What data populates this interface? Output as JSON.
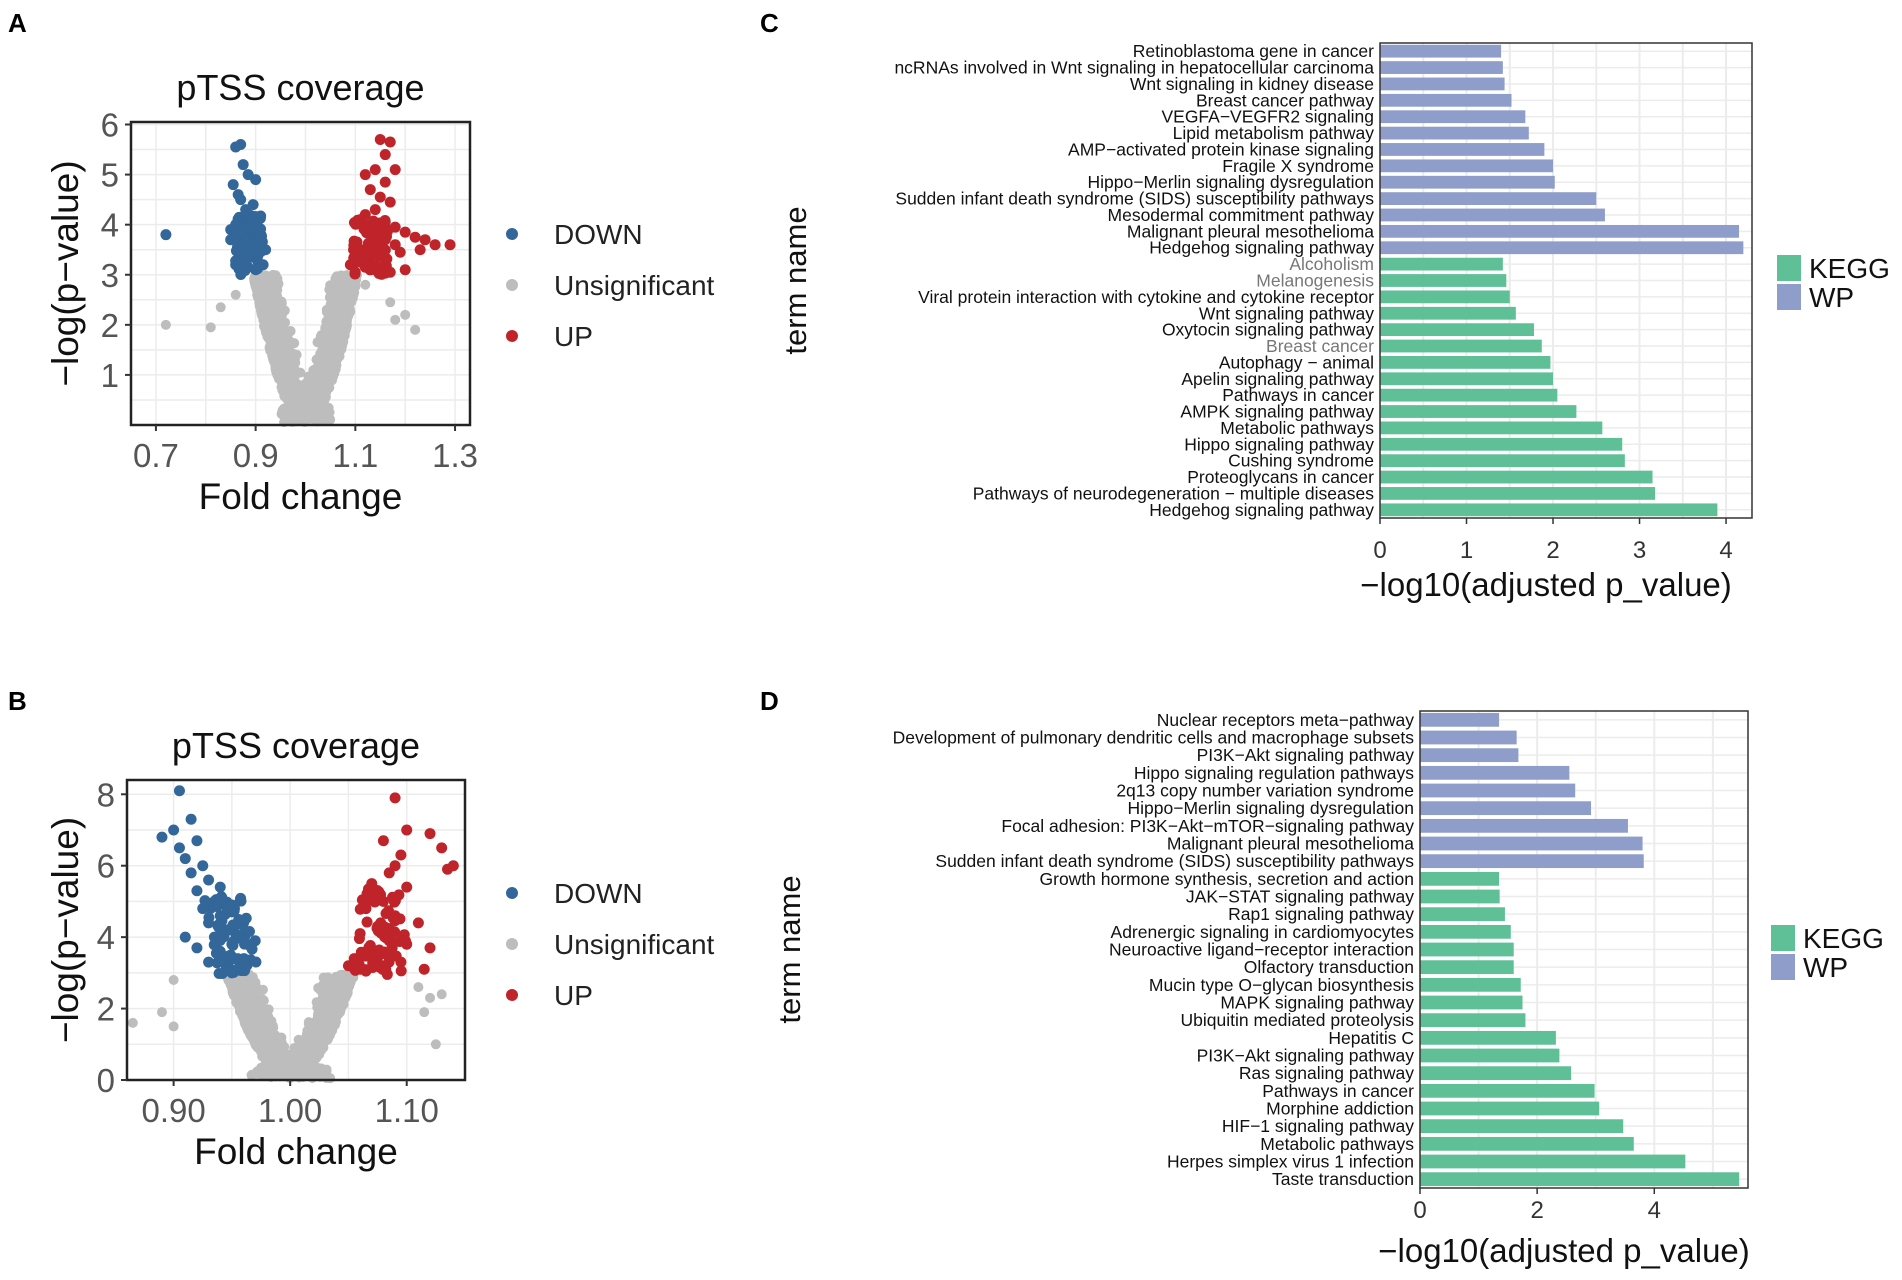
{
  "colors": {
    "down": "#336699",
    "unsig": "#bdbdbd",
    "up": "#c0242b",
    "kegg": "#5fbf96",
    "wp": "#8e9dc9",
    "grid": "#ececec",
    "frame": "#222222"
  },
  "chart_data": [
    {
      "panel": "A",
      "type": "scatter",
      "title": "pTSS coverage",
      "xlabel": "Fold change",
      "ylabel": "−log(p−value)",
      "xlim": [
        0.65,
        1.33
      ],
      "ylim": [
        0,
        6.05
      ],
      "xticks": [
        0.7,
        0.9,
        1.1,
        1.3
      ],
      "xtick_labels": [
        "0.7",
        "0.9",
        "1.1",
        "1.3"
      ],
      "yticks": [
        1,
        2,
        3,
        4,
        5,
        6
      ],
      "ytick_labels": [
        "1",
        "2",
        "3",
        "4",
        "5",
        "6"
      ],
      "legend": [
        {
          "key": "down",
          "label": "DOWN"
        },
        {
          "key": "unsig",
          "label": "Unsignificant"
        },
        {
          "key": "up",
          "label": "UP"
        }
      ],
      "down_points": [
        [
          0.72,
          3.8
        ],
        [
          0.87,
          5.6
        ],
        [
          0.86,
          5.55
        ],
        [
          0.875,
          5.2
        ],
        [
          0.885,
          5.0
        ],
        [
          0.9,
          4.9
        ],
        [
          0.855,
          4.8
        ],
        [
          0.865,
          4.6
        ],
        [
          0.87,
          4.5
        ],
        [
          0.88,
          4.3
        ],
        [
          0.895,
          4.4
        ],
        [
          0.905,
          4.1
        ],
        [
          0.86,
          4.0
        ],
        [
          0.875,
          3.9
        ],
        [
          0.89,
          3.8
        ],
        [
          0.91,
          3.6
        ],
        [
          0.92,
          3.5
        ],
        [
          0.85,
          3.7
        ],
        [
          0.865,
          3.55
        ],
        [
          0.88,
          3.45
        ],
        [
          0.895,
          3.35
        ],
        [
          0.905,
          3.25
        ],
        [
          0.915,
          3.2
        ],
        [
          0.87,
          3.3
        ],
        [
          0.885,
          3.15
        ],
        [
          0.9,
          3.1
        ],
        [
          0.86,
          3.2
        ],
        [
          0.85,
          3.9
        ],
        [
          0.875,
          4.15
        ],
        [
          0.89,
          3.95
        ]
      ],
      "up_points": [
        [
          1.15,
          5.7
        ],
        [
          1.17,
          5.65
        ],
        [
          1.16,
          5.4
        ],
        [
          1.18,
          5.1
        ],
        [
          1.14,
          5.1
        ],
        [
          1.12,
          5.0
        ],
        [
          1.16,
          4.85
        ],
        [
          1.13,
          4.7
        ],
        [
          1.15,
          4.55
        ],
        [
          1.17,
          4.45
        ],
        [
          1.14,
          4.3
        ],
        [
          1.12,
          4.2
        ],
        [
          1.11,
          4.1
        ],
        [
          1.16,
          4.05
        ],
        [
          1.18,
          3.95
        ],
        [
          1.2,
          3.85
        ],
        [
          1.22,
          3.75
        ],
        [
          1.24,
          3.7
        ],
        [
          1.26,
          3.6
        ],
        [
          1.29,
          3.6
        ],
        [
          1.23,
          3.5
        ],
        [
          1.19,
          3.45
        ],
        [
          1.15,
          3.4
        ],
        [
          1.13,
          3.35
        ],
        [
          1.11,
          3.3
        ],
        [
          1.1,
          3.25
        ],
        [
          1.09,
          3.2
        ],
        [
          1.12,
          3.15
        ],
        [
          1.14,
          3.1
        ],
        [
          1.17,
          3.05
        ],
        [
          1.2,
          3.1
        ],
        [
          1.18,
          3.6
        ],
        [
          1.16,
          3.7
        ],
        [
          1.1,
          3.5
        ],
        [
          1.13,
          3.9
        ]
      ],
      "unsig_extra": [
        [
          0.72,
          2.0
        ],
        [
          0.83,
          2.35
        ],
        [
          0.81,
          1.95
        ],
        [
          0.86,
          2.6
        ],
        [
          0.92,
          2.65
        ],
        [
          1.12,
          2.8
        ],
        [
          1.17,
          2.45
        ],
        [
          1.2,
          2.2
        ],
        [
          1.22,
          1.9
        ],
        [
          1.18,
          2.1
        ]
      ]
    },
    {
      "panel": "B",
      "type": "scatter",
      "title": "pTSS coverage",
      "xlabel": "Fold change",
      "ylabel": "−log(p−value)",
      "xlim": [
        0.86,
        1.15
      ],
      "ylim": [
        0,
        8.4
      ],
      "xticks": [
        0.9,
        1.0,
        1.1
      ],
      "xtick_labels": [
        "0.90",
        "1.00",
        "1.10"
      ],
      "yticks": [
        0,
        2,
        4,
        6,
        8
      ],
      "ytick_labels": [
        "0",
        "2",
        "4",
        "6",
        "8"
      ],
      "legend": [
        {
          "key": "down",
          "label": "DOWN"
        },
        {
          "key": "unsig",
          "label": "Unsignificant"
        },
        {
          "key": "up",
          "label": "UP"
        }
      ],
      "down_points": [
        [
          0.905,
          8.1
        ],
        [
          0.915,
          7.3
        ],
        [
          0.89,
          6.8
        ],
        [
          0.9,
          7.0
        ],
        [
          0.92,
          6.7
        ],
        [
          0.905,
          6.5
        ],
        [
          0.91,
          6.2
        ],
        [
          0.925,
          6.0
        ],
        [
          0.915,
          5.8
        ],
        [
          0.93,
          5.6
        ],
        [
          0.92,
          5.3
        ],
        [
          0.935,
          5.0
        ],
        [
          0.925,
          4.8
        ],
        [
          0.94,
          4.6
        ],
        [
          0.93,
          4.4
        ],
        [
          0.945,
          4.2
        ],
        [
          0.935,
          4.0
        ],
        [
          0.95,
          3.8
        ],
        [
          0.94,
          3.6
        ],
        [
          0.955,
          3.4
        ],
        [
          0.945,
          3.2
        ],
        [
          0.96,
          3.1
        ],
        [
          0.95,
          3.0
        ],
        [
          0.91,
          4.0
        ],
        [
          0.92,
          3.7
        ],
        [
          0.93,
          3.3
        ],
        [
          0.94,
          5.4
        ],
        [
          0.95,
          4.9
        ],
        [
          0.96,
          4.4
        ],
        [
          0.97,
          3.9
        ]
      ],
      "up_points": [
        [
          1.09,
          7.9
        ],
        [
          1.12,
          6.9
        ],
        [
          1.13,
          6.5
        ],
        [
          1.14,
          6.0
        ],
        [
          1.135,
          5.9
        ],
        [
          1.1,
          7.0
        ],
        [
          1.08,
          6.7
        ],
        [
          1.095,
          6.3
        ],
        [
          1.085,
          5.8
        ],
        [
          1.07,
          5.5
        ],
        [
          1.1,
          5.4
        ],
        [
          1.08,
          5.0
        ],
        [
          1.065,
          4.8
        ],
        [
          1.09,
          4.6
        ],
        [
          1.075,
          4.3
        ],
        [
          1.06,
          4.1
        ],
        [
          1.085,
          3.9
        ],
        [
          1.07,
          3.6
        ],
        [
          1.055,
          3.4
        ],
        [
          1.08,
          3.2
        ],
        [
          1.065,
          3.05
        ],
        [
          1.11,
          4.4
        ],
        [
          1.1,
          3.8
        ],
        [
          1.095,
          3.3
        ],
        [
          1.115,
          3.1
        ],
        [
          1.12,
          3.7
        ],
        [
          1.05,
          3.2
        ],
        [
          1.09,
          6.0
        ]
      ],
      "unsig_extra": [
        [
          0.865,
          1.6
        ],
        [
          0.9,
          2.8
        ],
        [
          0.89,
          1.9
        ],
        [
          0.9,
          1.5
        ],
        [
          1.11,
          2.6
        ],
        [
          1.12,
          2.3
        ],
        [
          1.125,
          1.0
        ],
        [
          1.13,
          2.4
        ],
        [
          1.115,
          1.9
        ]
      ]
    },
    {
      "panel": "C",
      "type": "bar",
      "orientation": "horizontal",
      "ylabel": "term name",
      "xlabel": "−log10(adjusted p_value)",
      "xlim": [
        0,
        4.3
      ],
      "xticks": [
        0,
        1,
        2,
        3,
        4
      ],
      "xtick_labels": [
        "0",
        "1",
        "2",
        "3",
        "4"
      ],
      "legend": [
        {
          "key": "kegg",
          "label": "KEGG"
        },
        {
          "key": "wp",
          "label": "WP"
        }
      ],
      "bars": [
        {
          "label": "Retinoblastoma gene in cancer",
          "value": 1.4,
          "group": "wp"
        },
        {
          "label": "ncRNAs involved in Wnt signaling in hepatocellular carcinoma",
          "value": 1.42,
          "group": "wp"
        },
        {
          "label": "Wnt signaling in kidney disease",
          "value": 1.44,
          "group": "wp"
        },
        {
          "label": "Breast cancer pathway",
          "value": 1.52,
          "group": "wp"
        },
        {
          "label": "VEGFA−VEGFR2 signaling",
          "value": 1.68,
          "group": "wp"
        },
        {
          "label": "Lipid metabolism pathway",
          "value": 1.72,
          "group": "wp"
        },
        {
          "label": "AMP−activated protein kinase signaling",
          "value": 1.9,
          "group": "wp"
        },
        {
          "label": "Fragile X syndrome",
          "value": 2.0,
          "group": "wp"
        },
        {
          "label": "Hippo−Merlin signaling dysregulation",
          "value": 2.02,
          "group": "wp"
        },
        {
          "label": "Sudden infant death syndrome (SIDS) susceptibility pathways",
          "value": 2.5,
          "group": "wp"
        },
        {
          "label": "Mesodermal commitment pathway",
          "value": 2.6,
          "group": "wp"
        },
        {
          "label": "Malignant pleural mesothelioma",
          "value": 4.15,
          "group": "wp"
        },
        {
          "label": "Hedgehog signaling pathway",
          "value": 4.2,
          "group": "wp"
        },
        {
          "label": "Alcoholism",
          "value": 1.42,
          "group": "kegg"
        },
        {
          "label": "Melanogenesis",
          "value": 1.46,
          "group": "kegg"
        },
        {
          "label": "Viral protein interaction with cytokine and cytokine receptor",
          "value": 1.5,
          "group": "kegg"
        },
        {
          "label": "Wnt signaling pathway",
          "value": 1.57,
          "group": "kegg"
        },
        {
          "label": "Oxytocin signaling pathway",
          "value": 1.78,
          "group": "kegg"
        },
        {
          "label": "Breast cancer",
          "value": 1.87,
          "group": "kegg"
        },
        {
          "label": "Autophagy − animal",
          "value": 1.97,
          "group": "kegg"
        },
        {
          "label": "Apelin signaling pathway",
          "value": 2.0,
          "group": "kegg"
        },
        {
          "label": "Pathways in cancer",
          "value": 2.05,
          "group": "kegg"
        },
        {
          "label": "AMPK signaling pathway",
          "value": 2.27,
          "group": "kegg"
        },
        {
          "label": "Metabolic pathways",
          "value": 2.57,
          "group": "kegg"
        },
        {
          "label": "Hippo signaling pathway",
          "value": 2.8,
          "group": "kegg"
        },
        {
          "label": "Cushing syndrome",
          "value": 2.83,
          "group": "kegg"
        },
        {
          "label": "Proteoglycans in cancer",
          "value": 3.15,
          "group": "kegg"
        },
        {
          "label": "Pathways of neurodegeneration − multiple diseases",
          "value": 3.18,
          "group": "kegg"
        },
        {
          "label": "Hedgehog signaling pathway",
          "value": 3.9,
          "group": "kegg"
        }
      ],
      "muted_labels": [
        "Alcoholism",
        "Melanogenesis",
        "Breast cancer"
      ]
    },
    {
      "panel": "D",
      "type": "bar",
      "orientation": "horizontal",
      "ylabel": "term name",
      "xlabel": "−log10(adjusted p_value)",
      "xlim": [
        0,
        5.6
      ],
      "xticks": [
        0,
        2,
        4
      ],
      "xtick_labels": [
        "0",
        "2",
        "4"
      ],
      "legend": [
        {
          "key": "kegg",
          "label": "KEGG"
        },
        {
          "key": "wp",
          "label": "WP"
        }
      ],
      "bars": [
        {
          "label": "Nuclear receptors meta−pathway",
          "value": 1.35,
          "group": "wp"
        },
        {
          "label": "Development of pulmonary dendritic cells and macrophage subsets",
          "value": 1.65,
          "group": "wp"
        },
        {
          "label": "PI3K−Akt signaling pathway",
          "value": 1.68,
          "group": "wp"
        },
        {
          "label": "Hippo signaling regulation pathways",
          "value": 2.55,
          "group": "wp"
        },
        {
          "label": "2q13 copy number variation syndrome",
          "value": 2.65,
          "group": "wp"
        },
        {
          "label": "Hippo−Merlin signaling dysregulation",
          "value": 2.92,
          "group": "wp"
        },
        {
          "label": "Focal adhesion: PI3K−Akt−mTOR−signaling pathway",
          "value": 3.55,
          "group": "wp"
        },
        {
          "label": "Malignant pleural mesothelioma",
          "value": 3.8,
          "group": "wp"
        },
        {
          "label": "Sudden infant death syndrome (SIDS) susceptibility pathways",
          "value": 3.82,
          "group": "wp"
        },
        {
          "label": "Growth hormone synthesis, secretion and action",
          "value": 1.35,
          "group": "kegg"
        },
        {
          "label": "JAK−STAT signaling pathway",
          "value": 1.36,
          "group": "kegg"
        },
        {
          "label": "Rap1 signaling pathway",
          "value": 1.45,
          "group": "kegg"
        },
        {
          "label": "Adrenergic signaling in cardiomyocytes",
          "value": 1.55,
          "group": "kegg"
        },
        {
          "label": "Neuroactive ligand−receptor interaction",
          "value": 1.6,
          "group": "kegg"
        },
        {
          "label": "Olfactory transduction",
          "value": 1.6,
          "group": "kegg"
        },
        {
          "label": "Mucin type O−glycan biosynthesis",
          "value": 1.72,
          "group": "kegg"
        },
        {
          "label": "MAPK signaling pathway",
          "value": 1.75,
          "group": "kegg"
        },
        {
          "label": "Ubiquitin mediated proteolysis",
          "value": 1.8,
          "group": "kegg"
        },
        {
          "label": "Hepatitis C",
          "value": 2.32,
          "group": "kegg"
        },
        {
          "label": "PI3K−Akt signaling pathway",
          "value": 2.38,
          "group": "kegg"
        },
        {
          "label": "Ras signaling pathway",
          "value": 2.58,
          "group": "kegg"
        },
        {
          "label": "Pathways in cancer",
          "value": 2.98,
          "group": "kegg"
        },
        {
          "label": "Morphine addiction",
          "value": 3.06,
          "group": "kegg"
        },
        {
          "label": "HIF−1 signaling pathway",
          "value": 3.47,
          "group": "kegg"
        },
        {
          "label": "Metabolic pathways",
          "value": 3.65,
          "group": "kegg"
        },
        {
          "label": "Herpes simplex virus 1 infection",
          "value": 4.53,
          "group": "kegg"
        },
        {
          "label": "Taste transduction",
          "value": 5.45,
          "group": "kegg"
        }
      ],
      "muted_labels": []
    }
  ]
}
